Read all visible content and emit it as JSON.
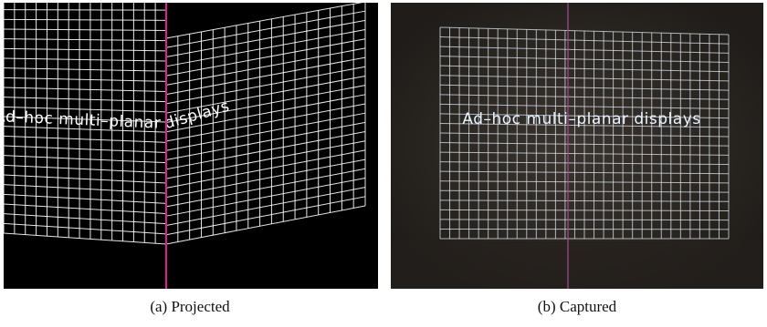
{
  "panels": [
    {
      "caption": "(a) Projected",
      "overlay_text": "Ad–hoc multi–planar displays"
    },
    {
      "caption": "(b) Captured",
      "overlay_text": "Ad–hoc multi–planar displays"
    }
  ]
}
